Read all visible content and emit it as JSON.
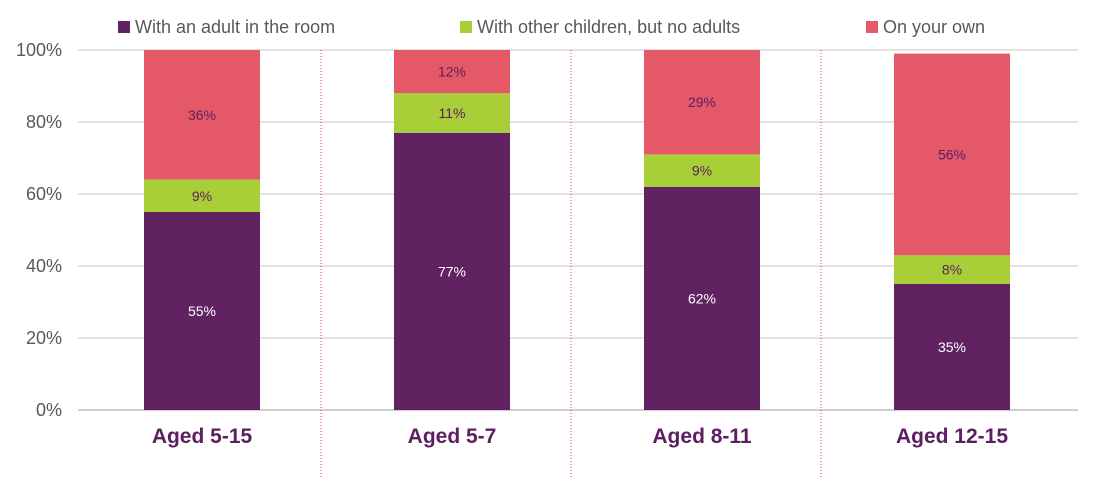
{
  "chart_data": {
    "type": "bar",
    "stacked": true,
    "categories": [
      "Aged 5-15",
      "Aged 5-7",
      "Aged 8-11",
      "Aged 12-15"
    ],
    "series": [
      {
        "name": "With an adult in the room",
        "values": [
          55,
          77,
          62,
          35
        ],
        "labels": [
          "55%",
          "77%",
          "62%",
          "35%"
        ]
      },
      {
        "name": "With other children, but no adults",
        "values": [
          9,
          11,
          9,
          8
        ],
        "labels": [
          "9%",
          "11%",
          "9%",
          "8%"
        ]
      },
      {
        "name": "On your own",
        "values": [
          36,
          12,
          29,
          56
        ],
        "labels": [
          "36%",
          "12%",
          "29%",
          "56%"
        ]
      }
    ],
    "ylim": [
      0,
      100
    ],
    "yticks": [
      "0%",
      "20%",
      "40%",
      "60%",
      "80%",
      "100%"
    ],
    "legend_position": "top",
    "grid": true
  },
  "colors": {
    "series": [
      "#612262",
      "#a9cf38",
      "#e45868"
    ],
    "label_text": [
      "#ffffff",
      "#5a1f5e",
      "#5a1f5e"
    ],
    "grid": "#d9d9d9",
    "separator": "#d4418e",
    "category_text": "#5c2060"
  }
}
